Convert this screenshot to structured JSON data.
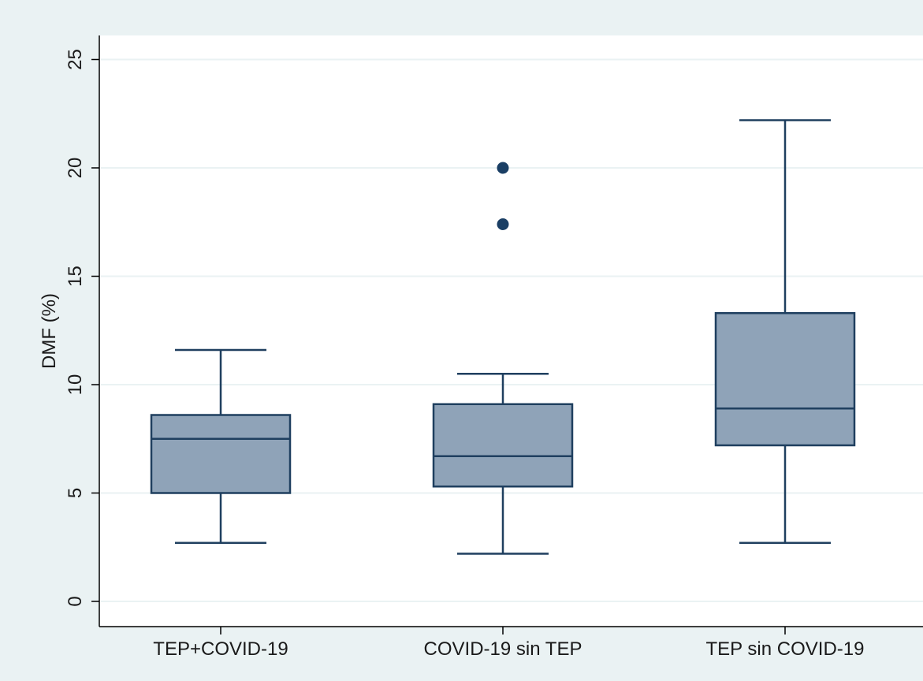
{
  "chart_data": {
    "type": "boxplot",
    "title": "",
    "xlabel": "",
    "ylabel": "DMF (%)",
    "ylim": [
      0,
      26
    ],
    "yticks": [
      0,
      5,
      10,
      15,
      20,
      25
    ],
    "grid": true,
    "categories": [
      "TEP+COVID-19",
      "COVID-19 sin TEP",
      "TEP sin COVID-19"
    ],
    "boxes": [
      {
        "category": "TEP+COVID-19",
        "whisker_low": 2.7,
        "q1": 5.0,
        "median": 7.5,
        "q3": 8.6,
        "whisker_high": 11.6,
        "outliers": []
      },
      {
        "category": "COVID-19 sin TEP",
        "whisker_low": 2.2,
        "q1": 5.3,
        "median": 6.7,
        "q3": 9.1,
        "whisker_high": 10.5,
        "outliers": [
          17.4,
          20.0
        ]
      },
      {
        "category": "TEP sin COVID-19",
        "whisker_low": 2.7,
        "q1": 7.2,
        "median": 8.9,
        "q3": 13.3,
        "whisker_high": 22.2,
        "outliers": []
      }
    ],
    "colors": {
      "outer_background": "#eaf2f3",
      "plot_background": "#ffffff",
      "grid": "#eaf2f3",
      "box_fill": "#8fa3b8",
      "box_stroke": "#1f3f5f",
      "outlier": "#1a3e64",
      "axis": "#000000"
    }
  }
}
